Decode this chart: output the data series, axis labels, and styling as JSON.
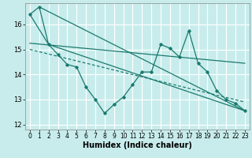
{
  "xlabel": "Humidex (Indice chaleur)",
  "background_color": "#c8ecec",
  "grid_color": "#ffffff",
  "line_color": "#1a7a6e",
  "xlim": [
    -0.5,
    23.5
  ],
  "ylim": [
    11.8,
    16.85
  ],
  "yticks": [
    12,
    13,
    14,
    15,
    16
  ],
  "xticks": [
    0,
    1,
    2,
    3,
    4,
    5,
    6,
    7,
    8,
    9,
    10,
    11,
    12,
    13,
    14,
    15,
    16,
    17,
    18,
    19,
    20,
    21,
    22,
    23
  ],
  "series1_x": [
    0,
    1,
    2,
    3,
    4,
    5,
    6,
    7,
    8,
    9,
    10,
    11,
    12,
    13,
    14,
    15,
    16,
    17,
    18,
    19,
    20,
    21,
    22,
    23
  ],
  "series1_y": [
    16.4,
    16.7,
    15.2,
    14.8,
    14.4,
    14.3,
    13.5,
    13.0,
    12.45,
    12.8,
    13.1,
    13.6,
    14.1,
    14.1,
    15.2,
    15.05,
    14.7,
    15.75,
    14.45,
    14.1,
    13.35,
    13.0,
    12.85,
    12.55
  ],
  "tri_x": [
    0,
    1,
    2,
    23,
    0
  ],
  "tri_y": [
    16.4,
    16.7,
    15.2,
    12.55,
    16.4
  ],
  "trend1_x": [
    0,
    23
  ],
  "trend1_y": [
    15.25,
    14.45
  ],
  "trend2_x": [
    0,
    23
  ],
  "trend2_y": [
    15.0,
    12.9
  ]
}
